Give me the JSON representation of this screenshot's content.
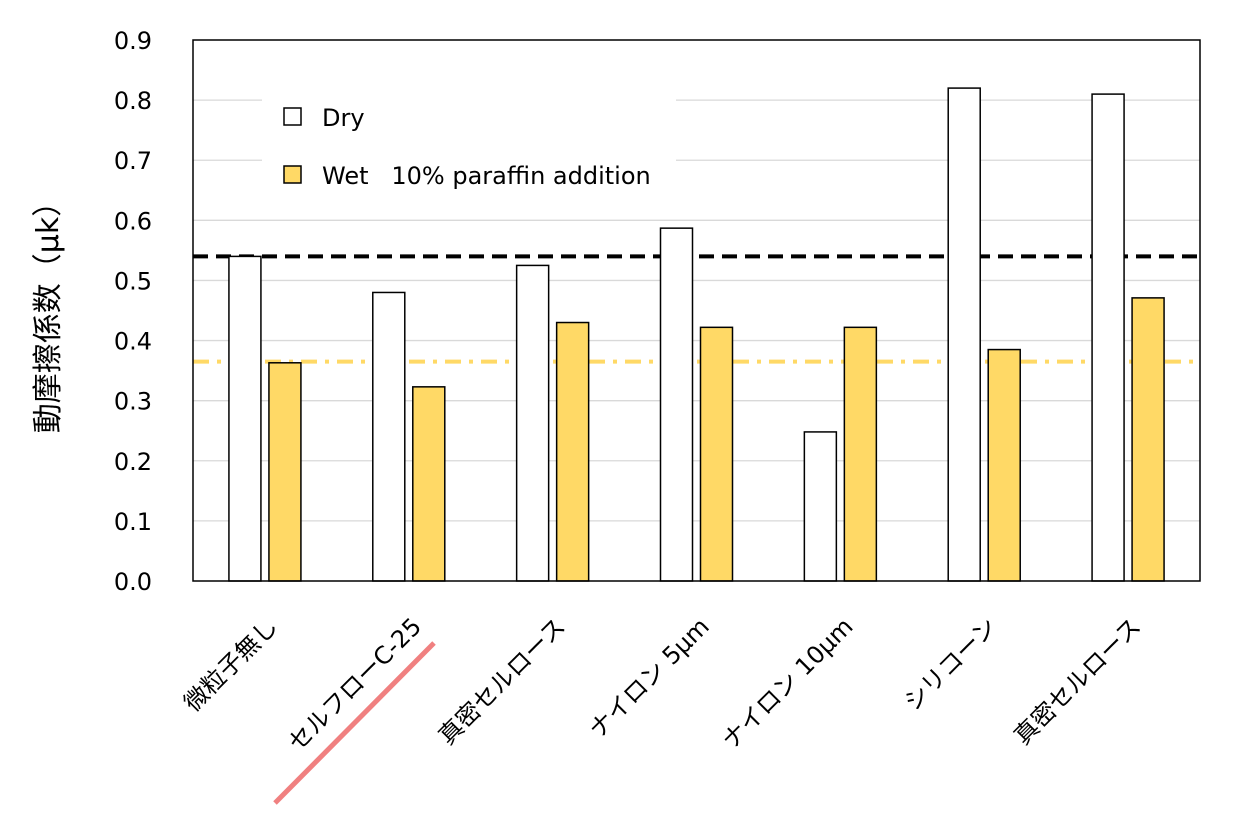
{
  "chart_data": {
    "type": "bar",
    "title": "",
    "xlabel": "",
    "ylabel": "動摩擦係数（μk）",
    "ylim": [
      0,
      0.9
    ],
    "yticks": [
      "0.0",
      "0.1",
      "0.2",
      "0.3",
      "0.4",
      "0.5",
      "0.6",
      "0.7",
      "0.8",
      "0.9"
    ],
    "grid": true,
    "legend_position": "top-left",
    "categories": [
      "微粒子無し",
      "セルフローC-25",
      "真密セルロース",
      "ナイロン 5μm",
      "ナイロン 10μm",
      "シリコーン",
      "真密セルロース"
    ],
    "series": [
      {
        "name": "Dry",
        "values": [
          0.54,
          0.48,
          0.525,
          0.587,
          0.248,
          0.82,
          0.81
        ],
        "color": "#ffffff",
        "stroke": "#000000"
      },
      {
        "name": "Wet   10% paraffin addition",
        "values": [
          0.363,
          0.323,
          0.43,
          0.422,
          0.422,
          0.385,
          0.471
        ],
        "color": "#ffd966",
        "stroke": "#000000"
      }
    ],
    "reference_lines": [
      {
        "value": 0.54,
        "style": "dashed",
        "color": "#000000"
      },
      {
        "value": 0.365,
        "style": "dash-dot",
        "color": "#ffd966"
      }
    ],
    "annotation": {
      "type": "strikethrough",
      "target_category_index": 1,
      "color": "#f08080"
    }
  }
}
